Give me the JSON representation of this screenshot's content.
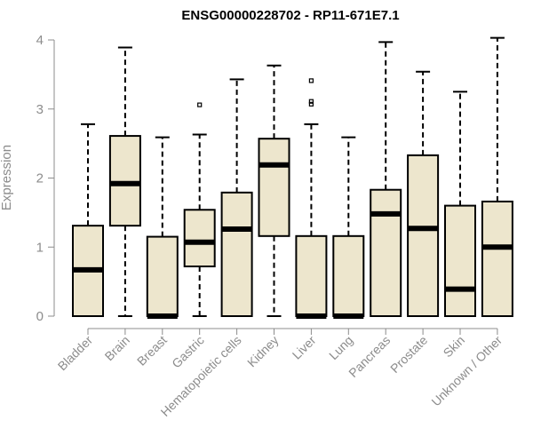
{
  "chart_data": {
    "type": "boxplot",
    "title": "ENSG00000228702 - RP11-671E7.1",
    "xlabel": "",
    "ylabel": "Expression",
    "ylim": [
      0,
      4.05
    ],
    "yticks": [
      0,
      1,
      2,
      3,
      4
    ],
    "grid": false,
    "box_fill": "#ede6cd",
    "categories": [
      "Bladder",
      "Brain",
      "Breast",
      "Gastric",
      "Hematopoietic cells",
      "Kidney",
      "Liver",
      "Lung",
      "Pancreas",
      "Prostate",
      "Skin",
      "Unknown / Other"
    ],
    "boxes": [
      {
        "label": "Bladder",
        "lower_whisker": 0.0,
        "q1": 0.0,
        "median": 0.67,
        "q3": 1.31,
        "upper_whisker": 2.78,
        "outliers": []
      },
      {
        "label": "Brain",
        "lower_whisker": 0.0,
        "q1": 1.31,
        "median": 1.92,
        "q3": 2.61,
        "upper_whisker": 3.89,
        "outliers": []
      },
      {
        "label": "Breast",
        "lower_whisker": 0.0,
        "q1": 0.0,
        "median": 0.0,
        "q3": 1.15,
        "upper_whisker": 2.59,
        "outliers": []
      },
      {
        "label": "Gastric",
        "lower_whisker": 0.0,
        "q1": 0.72,
        "median": 1.07,
        "q3": 1.54,
        "upper_whisker": 2.63,
        "outliers": [
          3.06
        ]
      },
      {
        "label": "Hematopoietic cells",
        "lower_whisker": 0.0,
        "q1": 0.0,
        "median": 1.26,
        "q3": 1.79,
        "upper_whisker": 3.43,
        "outliers": []
      },
      {
        "label": "Kidney",
        "lower_whisker": 0.0,
        "q1": 1.16,
        "median": 2.19,
        "q3": 2.57,
        "upper_whisker": 3.63,
        "outliers": []
      },
      {
        "label": "Liver",
        "lower_whisker": 0.0,
        "q1": 0.0,
        "median": 0.0,
        "q3": 1.16,
        "upper_whisker": 2.78,
        "outliers": [
          3.07,
          3.11,
          3.41
        ]
      },
      {
        "label": "Lung",
        "lower_whisker": 0.0,
        "q1": 0.0,
        "median": 0.0,
        "q3": 1.16,
        "upper_whisker": 2.59,
        "outliers": []
      },
      {
        "label": "Pancreas",
        "lower_whisker": 0.0,
        "q1": 0.0,
        "median": 1.48,
        "q3": 1.83,
        "upper_whisker": 3.97,
        "outliers": []
      },
      {
        "label": "Prostate",
        "lower_whisker": 0.0,
        "q1": 0.0,
        "median": 1.27,
        "q3": 2.33,
        "upper_whisker": 3.54,
        "outliers": []
      },
      {
        "label": "Skin",
        "lower_whisker": 0.0,
        "q1": 0.0,
        "median": 0.39,
        "q3": 1.6,
        "upper_whisker": 3.25,
        "outliers": []
      },
      {
        "label": "Unknown / Other",
        "lower_whisker": 0.0,
        "q1": 0.0,
        "median": 1.0,
        "q3": 1.66,
        "upper_whisker": 4.03,
        "outliers": []
      }
    ]
  }
}
